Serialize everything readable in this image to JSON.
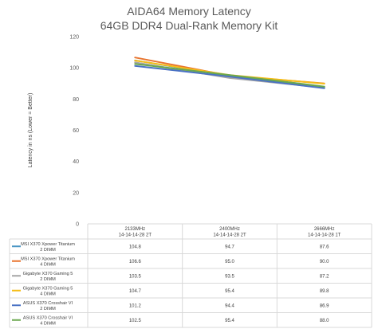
{
  "chart_data": {
    "type": "line",
    "title": "AIDA64 Memory Latency",
    "subtitle": "64GB DDR4 Dual-Rank Memory Kit",
    "ylabel": "Latency  in ns (Lower = Better)",
    "ylim": [
      0,
      120
    ],
    "yticks": [
      "0",
      "20",
      "40",
      "60",
      "80",
      "100",
      "120"
    ],
    "grid": false,
    "legend": "data-table",
    "categories": [
      {
        "speed": "2133MHz",
        "timing": "14-14-14-28 2T"
      },
      {
        "speed": "2400MHz",
        "timing": "14-14-14-28 2T"
      },
      {
        "speed": "2666MHz",
        "timing": "14-14-14-28 1T"
      }
    ],
    "series": [
      {
        "line1": "MSI X370 Xpower Titanium",
        "line2": "2 DIMM",
        "color": "#4a96c4",
        "values": [
          104.8,
          94.7,
          87.6
        ],
        "labels": [
          "104.8",
          "94.7",
          "87.6"
        ]
      },
      {
        "line1": "MSI X370 Xpower Titanium",
        "line2": "4 DIMM",
        "color": "#e8742f",
        "values": [
          106.6,
          95.0,
          90.0
        ],
        "labels": [
          "106.6",
          "95.0",
          "90.0"
        ]
      },
      {
        "line1": "Gigabyte X370 Gaming 5",
        "line2": "2 DIMM",
        "color": "#a5a5a5",
        "values": [
          103.5,
          93.5,
          87.2
        ],
        "labels": [
          "103.5",
          "93.5",
          "87.2"
        ]
      },
      {
        "line1": "Gigabyte X370 Gaming 5",
        "line2": "4 DIMM",
        "color": "#f5bd17",
        "values": [
          104.7,
          95.4,
          89.8
        ],
        "labels": [
          "104.7",
          "95.4",
          "89.8"
        ]
      },
      {
        "line1": "ASUS X370 Crosshair VI",
        "line2": "2 DIMM",
        "color": "#4a72c4",
        "values": [
          101.2,
          94.4,
          86.9
        ],
        "labels": [
          "101.2",
          "94.4",
          "86.9"
        ]
      },
      {
        "line1": "ASUS X370 Crosshair VI",
        "line2": "4 DIMM",
        "color": "#6aa84f",
        "values": [
          102.5,
          95.4,
          88.0
        ],
        "labels": [
          "102.5",
          "95.4",
          "88.0"
        ]
      }
    ]
  }
}
